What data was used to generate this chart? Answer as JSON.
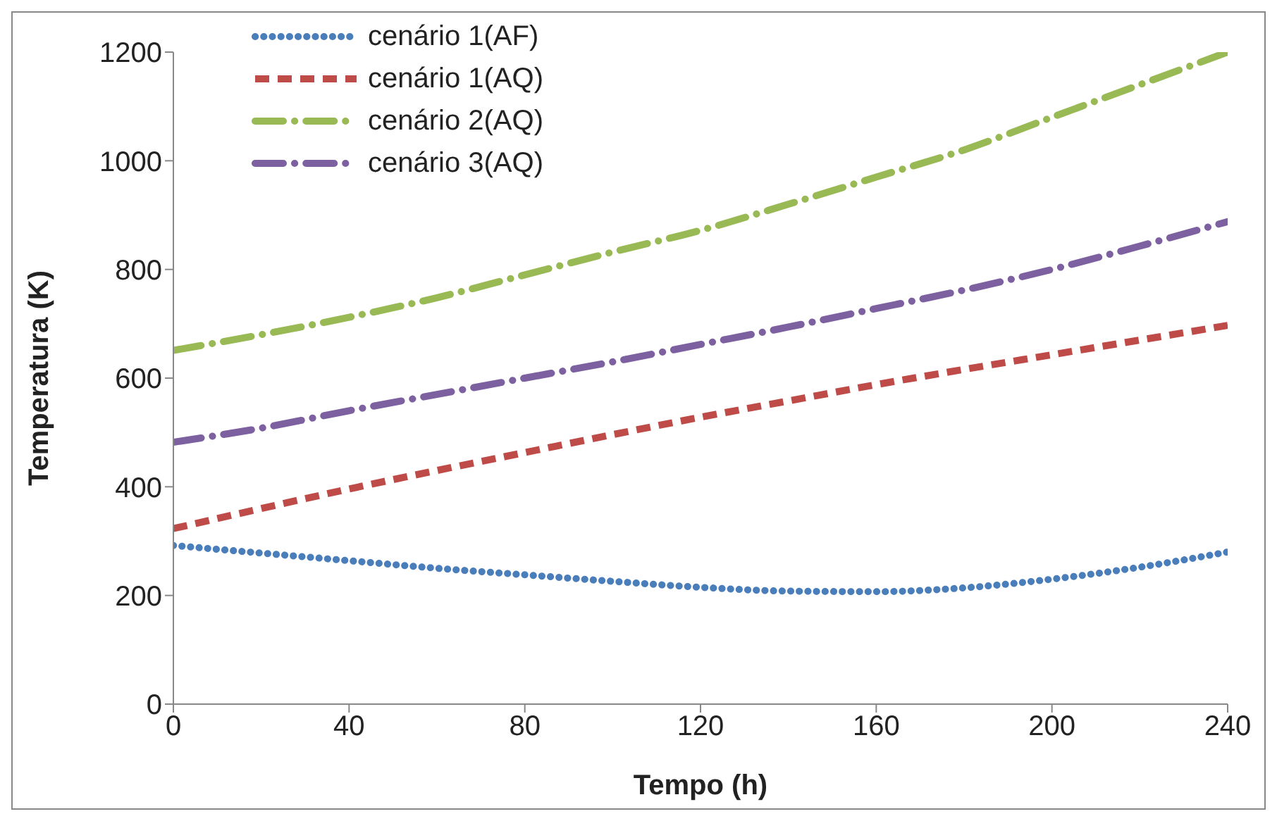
{
  "chart_data": {
    "type": "line",
    "xlabel": "Tempo (h)",
    "ylabel": "Temperatura (K)",
    "x": [
      0,
      20,
      40,
      60,
      80,
      100,
      120,
      140,
      160,
      180,
      200,
      220,
      240
    ],
    "xlim": [
      0,
      240
    ],
    "xticks": [
      0,
      40,
      80,
      120,
      160,
      200,
      240
    ],
    "ylim": [
      0,
      1200
    ],
    "yticks": [
      0,
      200,
      400,
      600,
      800,
      1000,
      1200
    ],
    "grid": false,
    "legend": "top left",
    "marker": "none",
    "series": [
      {
        "name": "cenário 1(AF)",
        "color": "#4a7ebb",
        "line_style": "dotted",
        "values": [
          292,
          278,
          264,
          250,
          238,
          226,
          215,
          208,
          207,
          214,
          230,
          252,
          280
        ]
      },
      {
        "name": "cenário 1(AQ)",
        "color": "#be4b48",
        "line_style": "dashed",
        "values": [
          323,
          360,
          396,
          430,
          463,
          496,
          528,
          558,
          588,
          616,
          643,
          670,
          697
        ]
      },
      {
        "name": "cenário 2(AQ)",
        "color": "#98b954",
        "line_style": "dashdot",
        "values": [
          651,
          680,
          712,
          748,
          790,
          832,
          872,
          920,
          970,
          1020,
          1080,
          1140,
          1200
        ]
      },
      {
        "name": "cenário 3(AQ)",
        "color": "#7d60a0",
        "line_style": "dashdot",
        "values": [
          482,
          508,
          540,
          570,
          600,
          630,
          662,
          694,
          728,
          762,
          800,
          843,
          888
        ]
      }
    ]
  }
}
